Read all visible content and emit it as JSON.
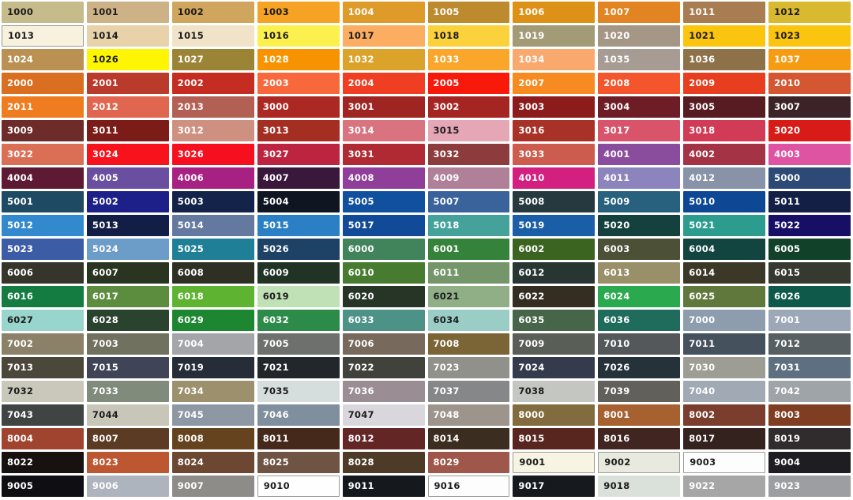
{
  "app": {
    "title": "RAL colour chart"
  },
  "grid": {
    "columns": 10,
    "rows": 21,
    "gutter_color": "#ffffff",
    "light_swatch_border_color": "#9b9b95",
    "cells": [
      {
        "code": "1000",
        "bg": "#C6BB8A",
        "fg": "#1C1C1C"
      },
      {
        "code": "1001",
        "bg": "#CDB287",
        "fg": "#1C1C1C"
      },
      {
        "code": "1002",
        "bg": "#D0A65F",
        "fg": "#1C1C1C"
      },
      {
        "code": "1003",
        "bg": "#F6A224",
        "fg": "#1C1C1C"
      },
      {
        "code": "1004",
        "bg": "#DE9B29",
        "fg": "#FFFFFF"
      },
      {
        "code": "1005",
        "bg": "#BE8A2E",
        "fg": "#FFFFFF"
      },
      {
        "code": "1006",
        "bg": "#DD9217",
        "fg": "#FFFFFF"
      },
      {
        "code": "1007",
        "bg": "#E18421",
        "fg": "#FFFFFF"
      },
      {
        "code": "1011",
        "bg": "#A87D52",
        "fg": "#FFFFFF"
      },
      {
        "code": "1012",
        "bg": "#D9B92F",
        "fg": "#1C1C1C"
      },
      {
        "code": "1013",
        "bg": "#F7F1DE",
        "fg": "#1C1C1C",
        "border": true
      },
      {
        "code": "1014",
        "bg": "#E7D2A9",
        "fg": "#1C1C1C"
      },
      {
        "code": "1015",
        "bg": "#F1E3C7",
        "fg": "#1C1C1C"
      },
      {
        "code": "1016",
        "bg": "#FCF04E",
        "fg": "#1C1C1C"
      },
      {
        "code": "1017",
        "bg": "#FBAD62",
        "fg": "#1C1C1C"
      },
      {
        "code": "1018",
        "bg": "#FCD23C",
        "fg": "#1C1C1C"
      },
      {
        "code": "1019",
        "bg": "#A39B76",
        "fg": "#FFFFFF"
      },
      {
        "code": "1020",
        "bg": "#A59786",
        "fg": "#FFFFFF"
      },
      {
        "code": "1021",
        "bg": "#FBC50F",
        "fg": "#1C1C1C"
      },
      {
        "code": "1023",
        "bg": "#FBC40E",
        "fg": "#1C1C1C"
      },
      {
        "code": "1024",
        "bg": "#BA9152",
        "fg": "#FFFFFF"
      },
      {
        "code": "1026",
        "bg": "#FDF501",
        "fg": "#1C1C1C"
      },
      {
        "code": "1027",
        "bg": "#9C8437",
        "fg": "#FFFFFF"
      },
      {
        "code": "1028",
        "bg": "#F89300",
        "fg": "#FFFFFF"
      },
      {
        "code": "1032",
        "bg": "#DCA32B",
        "fg": "#FFFFFF"
      },
      {
        "code": "1033",
        "bg": "#F9A62B",
        "fg": "#FFFFFF"
      },
      {
        "code": "1034",
        "bg": "#F9A96E",
        "fg": "#FFFFFF"
      },
      {
        "code": "1035",
        "bg": "#A69C93",
        "fg": "#FFFFFF"
      },
      {
        "code": "1036",
        "bg": "#8D7249",
        "fg": "#FFFFFF"
      },
      {
        "code": "1037",
        "bg": "#F59C12",
        "fg": "#FFFFFF"
      },
      {
        "code": "2000",
        "bg": "#DA6E21",
        "fg": "#FFFFFF"
      },
      {
        "code": "2001",
        "bg": "#BA3B2B",
        "fg": "#FFFFFF"
      },
      {
        "code": "2002",
        "bg": "#C52C22",
        "fg": "#FFFFFF"
      },
      {
        "code": "2003",
        "bg": "#F8683C",
        "fg": "#FFFFFF"
      },
      {
        "code": "2004",
        "bg": "#EF3E22",
        "fg": "#FFFFFF"
      },
      {
        "code": "2005",
        "bg": "#F8190B",
        "fg": "#FFFFFF"
      },
      {
        "code": "2007",
        "bg": "#F78A20",
        "fg": "#FFFFFF"
      },
      {
        "code": "2008",
        "bg": "#F5552C",
        "fg": "#FFFFFF"
      },
      {
        "code": "2009",
        "bg": "#E73E20",
        "fg": "#FFFFFF"
      },
      {
        "code": "2010",
        "bg": "#D55732",
        "fg": "#FFFFFF"
      },
      {
        "code": "2011",
        "bg": "#EF7D20",
        "fg": "#FFFFFF"
      },
      {
        "code": "2012",
        "bg": "#E0664F",
        "fg": "#FFFFFF"
      },
      {
        "code": "2013",
        "bg": "#B26053",
        "fg": "#FFFFFF"
      },
      {
        "code": "3000",
        "bg": "#AC2823",
        "fg": "#FFFFFF"
      },
      {
        "code": "3001",
        "bg": "#9E2522",
        "fg": "#FFFFFF"
      },
      {
        "code": "3002",
        "bg": "#A52523",
        "fg": "#FFFFFF"
      },
      {
        "code": "3003",
        "bg": "#8C1B1B",
        "fg": "#FFFFFF"
      },
      {
        "code": "3004",
        "bg": "#6E1D26",
        "fg": "#FFFFFF"
      },
      {
        "code": "3005",
        "bg": "#571C22",
        "fg": "#FFFFFF"
      },
      {
        "code": "3007",
        "bg": "#3B2327",
        "fg": "#FFFFFF"
      },
      {
        "code": "3009",
        "bg": "#6D2B29",
        "fg": "#FFFFFF"
      },
      {
        "code": "3011",
        "bg": "#7C1C18",
        "fg": "#FFFFFF"
      },
      {
        "code": "3012",
        "bg": "#CE9181",
        "fg": "#FFFFFF"
      },
      {
        "code": "3013",
        "bg": "#A52E23",
        "fg": "#FFFFFF"
      },
      {
        "code": "3014",
        "bg": "#D9737F",
        "fg": "#FFFFFF"
      },
      {
        "code": "3015",
        "bg": "#E5A7B5",
        "fg": "#1C1C1C"
      },
      {
        "code": "3016",
        "bg": "#A93228",
        "fg": "#FFFFFF"
      },
      {
        "code": "3017",
        "bg": "#D9546A",
        "fg": "#FFFFFF"
      },
      {
        "code": "3018",
        "bg": "#D23B55",
        "fg": "#FFFFFF"
      },
      {
        "code": "3020",
        "bg": "#D81B16",
        "fg": "#FFFFFF"
      },
      {
        "code": "3022",
        "bg": "#DB6F56",
        "fg": "#FFFFFF"
      },
      {
        "code": "3024",
        "bg": "#F7121C",
        "fg": "#FFFFFF"
      },
      {
        "code": "3026",
        "bg": "#F60F1E",
        "fg": "#FFFFFF"
      },
      {
        "code": "3027",
        "bg": "#BC2440",
        "fg": "#FFFFFF"
      },
      {
        "code": "3031",
        "bg": "#B02A33",
        "fg": "#FFFFFF"
      },
      {
        "code": "3032",
        "bg": "#8D3C3E",
        "fg": "#FFFFFF"
      },
      {
        "code": "3033",
        "bg": "#CC5C4D",
        "fg": "#FFFFFF"
      },
      {
        "code": "4001",
        "bg": "#8A4D9E",
        "fg": "#FFFFFF"
      },
      {
        "code": "4002",
        "bg": "#A43345",
        "fg": "#FFFFFF"
      },
      {
        "code": "4003",
        "bg": "#DE54A2",
        "fg": "#FFFFFF"
      },
      {
        "code": "4004",
        "bg": "#5F1A33",
        "fg": "#FFFFFF"
      },
      {
        "code": "4005",
        "bg": "#6A4FA0",
        "fg": "#FFFFFF"
      },
      {
        "code": "4006",
        "bg": "#A62182",
        "fg": "#FFFFFF"
      },
      {
        "code": "4007",
        "bg": "#39183B",
        "fg": "#FFFFFF"
      },
      {
        "code": "4008",
        "bg": "#8F3E99",
        "fg": "#FFFFFF"
      },
      {
        "code": "4009",
        "bg": "#B08099",
        "fg": "#FFFFFF"
      },
      {
        "code": "4010",
        "bg": "#D31F80",
        "fg": "#FFFFFF"
      },
      {
        "code": "4011",
        "bg": "#8C85BD",
        "fg": "#FFFFFF"
      },
      {
        "code": "4012",
        "bg": "#8893A8",
        "fg": "#FFFFFF"
      },
      {
        "code": "5000",
        "bg": "#2D4A77",
        "fg": "#FFFFFF"
      },
      {
        "code": "5001",
        "bg": "#1E4A64",
        "fg": "#FFFFFF"
      },
      {
        "code": "5002",
        "bg": "#1D2088",
        "fg": "#FFFFFF"
      },
      {
        "code": "5003",
        "bg": "#142349",
        "fg": "#FFFFFF"
      },
      {
        "code": "5004",
        "bg": "#0F1621",
        "fg": "#FFFFFF"
      },
      {
        "code": "5005",
        "bg": "#11509F",
        "fg": "#FFFFFF"
      },
      {
        "code": "5007",
        "bg": "#3A629B",
        "fg": "#FFFFFF"
      },
      {
        "code": "5008",
        "bg": "#26393F",
        "fg": "#FFFFFF"
      },
      {
        "code": "5009",
        "bg": "#27617E",
        "fg": "#FFFFFF"
      },
      {
        "code": "5010",
        "bg": "#0E4794",
        "fg": "#FFFFFF"
      },
      {
        "code": "5011",
        "bg": "#131F44",
        "fg": "#FFFFFF"
      },
      {
        "code": "5012",
        "bg": "#3289CE",
        "fg": "#FFFFFF"
      },
      {
        "code": "5013",
        "bg": "#121E45",
        "fg": "#FFFFFF"
      },
      {
        "code": "5014",
        "bg": "#64799F",
        "fg": "#FFFFFF"
      },
      {
        "code": "5015",
        "bg": "#2B80C5",
        "fg": "#FFFFFF"
      },
      {
        "code": "5017",
        "bg": "#114B97",
        "fg": "#FFFFFF"
      },
      {
        "code": "5018",
        "bg": "#45A29A",
        "fg": "#FFFFFF"
      },
      {
        "code": "5019",
        "bg": "#1A5EA8",
        "fg": "#FFFFFF"
      },
      {
        "code": "5020",
        "bg": "#14403E",
        "fg": "#FFFFFF"
      },
      {
        "code": "5021",
        "bg": "#2C9C8E",
        "fg": "#FFFFFF"
      },
      {
        "code": "5022",
        "bg": "#170F66",
        "fg": "#FFFFFF"
      },
      {
        "code": "5023",
        "bg": "#3D5CA6",
        "fg": "#FFFFFF"
      },
      {
        "code": "5024",
        "bg": "#6C9CC8",
        "fg": "#FFFFFF"
      },
      {
        "code": "5025",
        "bg": "#1F7F97",
        "fg": "#FFFFFF"
      },
      {
        "code": "5026",
        "bg": "#1D4266",
        "fg": "#FFFFFF"
      },
      {
        "code": "6000",
        "bg": "#41835B",
        "fg": "#FFFFFF"
      },
      {
        "code": "6001",
        "bg": "#35823B",
        "fg": "#FFFFFF"
      },
      {
        "code": "6002",
        "bg": "#3A6420",
        "fg": "#FFFFFF"
      },
      {
        "code": "6003",
        "bg": "#4C5036",
        "fg": "#FFFFFF"
      },
      {
        "code": "6004",
        "bg": "#124440",
        "fg": "#FFFFFF"
      },
      {
        "code": "6005",
        "bg": "#114229",
        "fg": "#FFFFFF"
      },
      {
        "code": "6006",
        "bg": "#35352C",
        "fg": "#FFFFFF"
      },
      {
        "code": "6007",
        "bg": "#293520",
        "fg": "#FFFFFF"
      },
      {
        "code": "6008",
        "bg": "#2E3024",
        "fg": "#FFFFFF"
      },
      {
        "code": "6009",
        "bg": "#203325",
        "fg": "#FFFFFF"
      },
      {
        "code": "6010",
        "bg": "#477B2F",
        "fg": "#FFFFFF"
      },
      {
        "code": "6011",
        "bg": "#75956A",
        "fg": "#FFFFFF"
      },
      {
        "code": "6012",
        "bg": "#273633",
        "fg": "#FFFFFF"
      },
      {
        "code": "6013",
        "bg": "#99906A",
        "fg": "#FFFFFF"
      },
      {
        "code": "6014",
        "bg": "#3C3827",
        "fg": "#FFFFFF"
      },
      {
        "code": "6015",
        "bg": "#36392F",
        "fg": "#FFFFFF"
      },
      {
        "code": "6016",
        "bg": "#147C41",
        "fg": "#FFFFFF"
      },
      {
        "code": "6017",
        "bg": "#5C8C3E",
        "fg": "#FFFFFF"
      },
      {
        "code": "6018",
        "bg": "#5EB431",
        "fg": "#FFFFFF"
      },
      {
        "code": "6019",
        "bg": "#C0E0B5",
        "fg": "#1C1C1C"
      },
      {
        "code": "6020",
        "bg": "#273527",
        "fg": "#FFFFFF"
      },
      {
        "code": "6021",
        "bg": "#90AF86",
        "fg": "#1C1C1C"
      },
      {
        "code": "6022",
        "bg": "#332E21",
        "fg": "#FFFFFF"
      },
      {
        "code": "6024",
        "bg": "#2BA94E",
        "fg": "#FFFFFF"
      },
      {
        "code": "6025",
        "bg": "#61783D",
        "fg": "#FFFFFF"
      },
      {
        "code": "6026",
        "bg": "#0E594A",
        "fg": "#FFFFFF"
      },
      {
        "code": "6027",
        "bg": "#98D5CC",
        "fg": "#1C1C1C"
      },
      {
        "code": "6028",
        "bg": "#2A432F",
        "fg": "#FFFFFF"
      },
      {
        "code": "6029",
        "bg": "#1C8631",
        "fg": "#FFFFFF"
      },
      {
        "code": "6032",
        "bg": "#2D8B4A",
        "fg": "#FFFFFF"
      },
      {
        "code": "6033",
        "bg": "#4D9287",
        "fg": "#FFFFFF"
      },
      {
        "code": "6034",
        "bg": "#9BCDC7",
        "fg": "#1C1C1C"
      },
      {
        "code": "6035",
        "bg": "#476549",
        "fg": "#FFFFFF"
      },
      {
        "code": "6036",
        "bg": "#206C5C",
        "fg": "#FFFFFF"
      },
      {
        "code": "7000",
        "bg": "#8D9DAD",
        "fg": "#FFFFFF"
      },
      {
        "code": "7001",
        "bg": "#9CA8B7",
        "fg": "#FFFFFF"
      },
      {
        "code": "7002",
        "bg": "#8B8168",
        "fg": "#FFFFFF"
      },
      {
        "code": "7003",
        "bg": "#70725F",
        "fg": "#FFFFFF"
      },
      {
        "code": "7004",
        "bg": "#A3A5A9",
        "fg": "#FFFFFF"
      },
      {
        "code": "7005",
        "bg": "#6D706C",
        "fg": "#FFFFFF"
      },
      {
        "code": "7006",
        "bg": "#776A5D",
        "fg": "#FFFFFF"
      },
      {
        "code": "7008",
        "bg": "#7B6435",
        "fg": "#FFFFFF"
      },
      {
        "code": "7009",
        "bg": "#595E56",
        "fg": "#FFFFFF"
      },
      {
        "code": "7010",
        "bg": "#54585B",
        "fg": "#FFFFFF"
      },
      {
        "code": "7011",
        "bg": "#45515D",
        "fg": "#FFFFFF"
      },
      {
        "code": "7012",
        "bg": "#575F63",
        "fg": "#FFFFFF"
      },
      {
        "code": "7013",
        "bg": "#4C473B",
        "fg": "#FFFFFF"
      },
      {
        "code": "7015",
        "bg": "#3F4556",
        "fg": "#FFFFFF"
      },
      {
        "code": "7019",
        "bg": "#262C38",
        "fg": "#FFFFFF"
      },
      {
        "code": "7021",
        "bg": "#22272C",
        "fg": "#FFFFFF"
      },
      {
        "code": "7022",
        "bg": "#42423C",
        "fg": "#FFFFFF"
      },
      {
        "code": "7023",
        "bg": "#90918A",
        "fg": "#FFFFFF"
      },
      {
        "code": "7024",
        "bg": "#343B4D",
        "fg": "#FFFFFF"
      },
      {
        "code": "7026",
        "bg": "#25323A",
        "fg": "#FFFFFF"
      },
      {
        "code": "7030",
        "bg": "#9E9D94",
        "fg": "#FFFFFF"
      },
      {
        "code": "7031",
        "bg": "#5D6F80",
        "fg": "#FFFFFF"
      },
      {
        "code": "7032",
        "bg": "#C9C8BA",
        "fg": "#1C1C1C"
      },
      {
        "code": "7033",
        "bg": "#808B7C",
        "fg": "#FFFFFF"
      },
      {
        "code": "7034",
        "bg": "#9C916C",
        "fg": "#FFFFFF"
      },
      {
        "code": "7035",
        "bg": "#D6DDDD",
        "fg": "#1C1C1C"
      },
      {
        "code": "7036",
        "bg": "#9A8E94",
        "fg": "#FFFFFF"
      },
      {
        "code": "7037",
        "bg": "#858789",
        "fg": "#FFFFFF"
      },
      {
        "code": "7038",
        "bg": "#C4C7C1",
        "fg": "#1C1C1C"
      },
      {
        "code": "7039",
        "bg": "#61605B",
        "fg": "#FFFFFF"
      },
      {
        "code": "7040",
        "bg": "#A0A9B4",
        "fg": "#FFFFFF"
      },
      {
        "code": "7042",
        "bg": "#9EA4A7",
        "fg": "#FFFFFF"
      },
      {
        "code": "7043",
        "bg": "#404544",
        "fg": "#FFFFFF"
      },
      {
        "code": "7044",
        "bg": "#C7C6B9",
        "fg": "#1C1C1C"
      },
      {
        "code": "7045",
        "bg": "#8E98A5",
        "fg": "#FFFFFF"
      },
      {
        "code": "7046",
        "bg": "#7F8F9D",
        "fg": "#FFFFFF"
      },
      {
        "code": "7047",
        "bg": "#D9D7DB",
        "fg": "#1C1C1C"
      },
      {
        "code": "7048",
        "bg": "#9D958C",
        "fg": "#FFFFFF"
      },
      {
        "code": "8000",
        "bg": "#826B3E",
        "fg": "#FFFFFF"
      },
      {
        "code": "8001",
        "bg": "#A7602F",
        "fg": "#FFFFFF"
      },
      {
        "code": "8002",
        "bg": "#7A3D2E",
        "fg": "#FFFFFF"
      },
      {
        "code": "8003",
        "bg": "#7F3D22",
        "fg": "#FFFFFF"
      },
      {
        "code": "8004",
        "bg": "#A1442F",
        "fg": "#FFFFFF"
      },
      {
        "code": "8007",
        "bg": "#5C3B24",
        "fg": "#FFFFFF"
      },
      {
        "code": "8008",
        "bg": "#65431F",
        "fg": "#FFFFFF"
      },
      {
        "code": "8011",
        "bg": "#452A1B",
        "fg": "#FFFFFF"
      },
      {
        "code": "8012",
        "bg": "#642525",
        "fg": "#FFFFFF"
      },
      {
        "code": "8014",
        "bg": "#3B2D1F",
        "fg": "#FFFFFF"
      },
      {
        "code": "8015",
        "bg": "#58261F",
        "fg": "#FFFFFF"
      },
      {
        "code": "8016",
        "bg": "#402521",
        "fg": "#FFFFFF"
      },
      {
        "code": "8017",
        "bg": "#33221E",
        "fg": "#FFFFFF"
      },
      {
        "code": "8019",
        "bg": "#302B2D",
        "fg": "#FFFFFF"
      },
      {
        "code": "8022",
        "bg": "#17110F",
        "fg": "#FFFFFF"
      },
      {
        "code": "8023",
        "bg": "#BD5732",
        "fg": "#FFFFFF"
      },
      {
        "code": "8024",
        "bg": "#6C4732",
        "fg": "#FFFFFF"
      },
      {
        "code": "8025",
        "bg": "#6F5444",
        "fg": "#FFFFFF"
      },
      {
        "code": "8028",
        "bg": "#4D3B28",
        "fg": "#FFFFFF"
      },
      {
        "code": "8029",
        "bg": "#9E574A",
        "fg": "#FFFFFF"
      },
      {
        "code": "9001",
        "bg": "#F8F4E4",
        "fg": "#1C1C1C",
        "border": true
      },
      {
        "code": "9002",
        "bg": "#E8E9DF",
        "fg": "#1C1C1C",
        "border": true
      },
      {
        "code": "9003",
        "bg": "#FDFDFD",
        "fg": "#1C1C1C",
        "border": true
      },
      {
        "code": "9004",
        "bg": "#1E1D22",
        "fg": "#FFFFFF"
      },
      {
        "code": "9005",
        "bg": "#0F0E13",
        "fg": "#FFFFFF"
      },
      {
        "code": "9006",
        "bg": "#AEB4BD",
        "fg": "#FFFFFF"
      },
      {
        "code": "9007",
        "bg": "#8D8C89",
        "fg": "#FFFFFF"
      },
      {
        "code": "9010",
        "bg": "#FEFEFE",
        "fg": "#1C1C1C",
        "border": true
      },
      {
        "code": "9011",
        "bg": "#15181D",
        "fg": "#FFFFFF"
      },
      {
        "code": "9016",
        "bg": "#FDFDFD",
        "fg": "#1C1C1C",
        "border": true
      },
      {
        "code": "9017",
        "bg": "#16191E",
        "fg": "#FFFFFF"
      },
      {
        "code": "9018",
        "bg": "#DAE1DB",
        "fg": "#1C1C1C"
      },
      {
        "code": "9022",
        "bg": "#A5A6A5",
        "fg": "#FFFFFF"
      },
      {
        "code": "9023",
        "bg": "#9C9EA1",
        "fg": "#FFFFFF"
      }
    ]
  }
}
